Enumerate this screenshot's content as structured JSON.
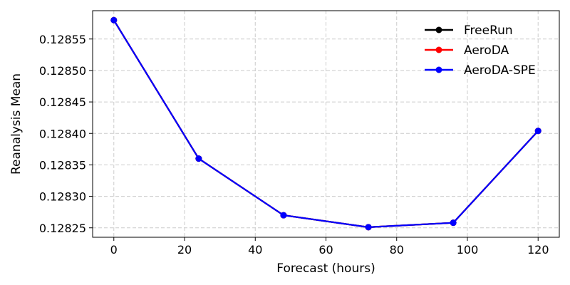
{
  "chart_data": {
    "type": "line",
    "title": "",
    "xlabel": "Forecast (hours)",
    "ylabel": "Reanalysis Mean",
    "x": [
      0,
      24,
      48,
      72,
      96,
      120
    ],
    "xlim": [
      -6,
      126
    ],
    "ylim": [
      0.128235,
      0.128595
    ],
    "xticks": [
      0,
      20,
      40,
      60,
      80,
      100,
      120
    ],
    "yticks": [
      0.12825,
      0.1283,
      0.12835,
      0.1284,
      0.12845,
      0.1285,
      0.12855
    ],
    "xtick_labels": [
      "0",
      "20",
      "40",
      "60",
      "80",
      "100",
      "120"
    ],
    "ytick_labels": [
      "0.12825",
      "0.12830",
      "0.12835",
      "0.12840",
      "0.12845",
      "0.12850",
      "0.12855"
    ],
    "grid": true,
    "legend_position": "top-right",
    "series": [
      {
        "name": "FreeRun",
        "color": "#000000",
        "values": [
          0.12858,
          0.12836,
          0.12827,
          0.128251,
          0.128258,
          0.128404
        ]
      },
      {
        "name": "AeroDA",
        "color": "#ff0000",
        "values": [
          0.12858,
          0.12836,
          0.12827,
          0.128251,
          0.128258,
          0.128404
        ]
      },
      {
        "name": "AeroDA-SPE",
        "color": "#0000ff",
        "values": [
          0.12858,
          0.12836,
          0.12827,
          0.128251,
          0.128258,
          0.128404
        ]
      }
    ]
  }
}
